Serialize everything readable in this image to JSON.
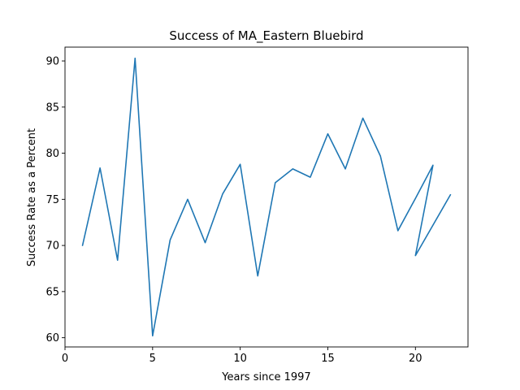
{
  "chart_data": {
    "type": "line",
    "title": "Success of MA_Eastern Bluebird",
    "xlabel": "Years since 1997",
    "ylabel": "Success Rate as a Percent",
    "xlim": [
      0,
      23
    ],
    "ylim": [
      59,
      91.5
    ],
    "xticks": [
      0,
      5,
      10,
      15,
      20
    ],
    "yticks": [
      60,
      65,
      70,
      75,
      80,
      85,
      90
    ],
    "grid": false,
    "color": "#1f77b4",
    "series": [
      {
        "x": [
          1,
          2,
          3,
          4,
          5,
          6,
          7,
          8,
          9,
          10,
          11,
          12,
          13,
          14,
          15,
          16,
          17,
          18,
          19,
          20,
          21,
          20,
          22
        ],
        "y": [
          70.0,
          78.4,
          68.4,
          90.3,
          60.2,
          70.6,
          75.0,
          70.3,
          75.6,
          78.8,
          66.7,
          76.8,
          78.3,
          77.4,
          82.1,
          78.3,
          83.8,
          79.7,
          71.6,
          75.1,
          78.7,
          68.9,
          75.5
        ]
      }
    ]
  }
}
